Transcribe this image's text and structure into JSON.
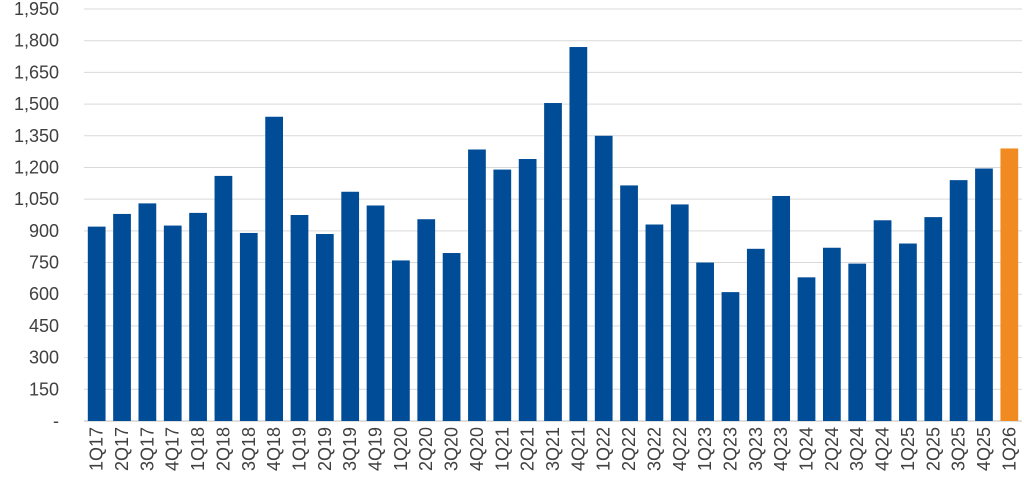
{
  "chart_data": {
    "type": "bar",
    "title": "",
    "xlabel": "",
    "ylabel": "",
    "ylim": [
      0,
      1950
    ],
    "yticks": [
      0,
      150,
      300,
      450,
      600,
      750,
      900,
      1050,
      1200,
      1350,
      1500,
      1650,
      1800,
      1950
    ],
    "ytick_labels": [
      "-",
      "150",
      "300",
      "450",
      "600",
      "750",
      "900",
      "1,050",
      "1,200",
      "1,350",
      "1,500",
      "1,650",
      "1,800",
      "1,950"
    ],
    "grid": true,
    "legend": "none",
    "categories": [
      "1Q17",
      "2Q17",
      "3Q17",
      "4Q17",
      "1Q18",
      "2Q18",
      "3Q18",
      "4Q18",
      "1Q19",
      "2Q19",
      "3Q19",
      "4Q19",
      "1Q20",
      "2Q20",
      "3Q20",
      "4Q20",
      "1Q21",
      "2Q21",
      "3Q21",
      "4Q21",
      "1Q22",
      "2Q22",
      "3Q22",
      "4Q22",
      "1Q23",
      "2Q23",
      "3Q23",
      "4Q23",
      "1Q24",
      "2Q24",
      "3Q24",
      "4Q24",
      "1Q25",
      "2Q25",
      "3Q25",
      "4Q25",
      "1Q26"
    ],
    "values": [
      920,
      980,
      1030,
      925,
      985,
      1160,
      890,
      1440,
      975,
      885,
      1085,
      1020,
      760,
      955,
      795,
      1285,
      1190,
      1240,
      1505,
      1770,
      1350,
      1115,
      930,
      1025,
      750,
      610,
      815,
      1065,
      680,
      820,
      745,
      950,
      840,
      965,
      1140,
      1195,
      1290
    ],
    "colors": {
      "bar": "#004c97",
      "highlight": "#f18a21",
      "grid": "#d9d9d9",
      "text": "#404040"
    },
    "highlight_index": 36
  }
}
